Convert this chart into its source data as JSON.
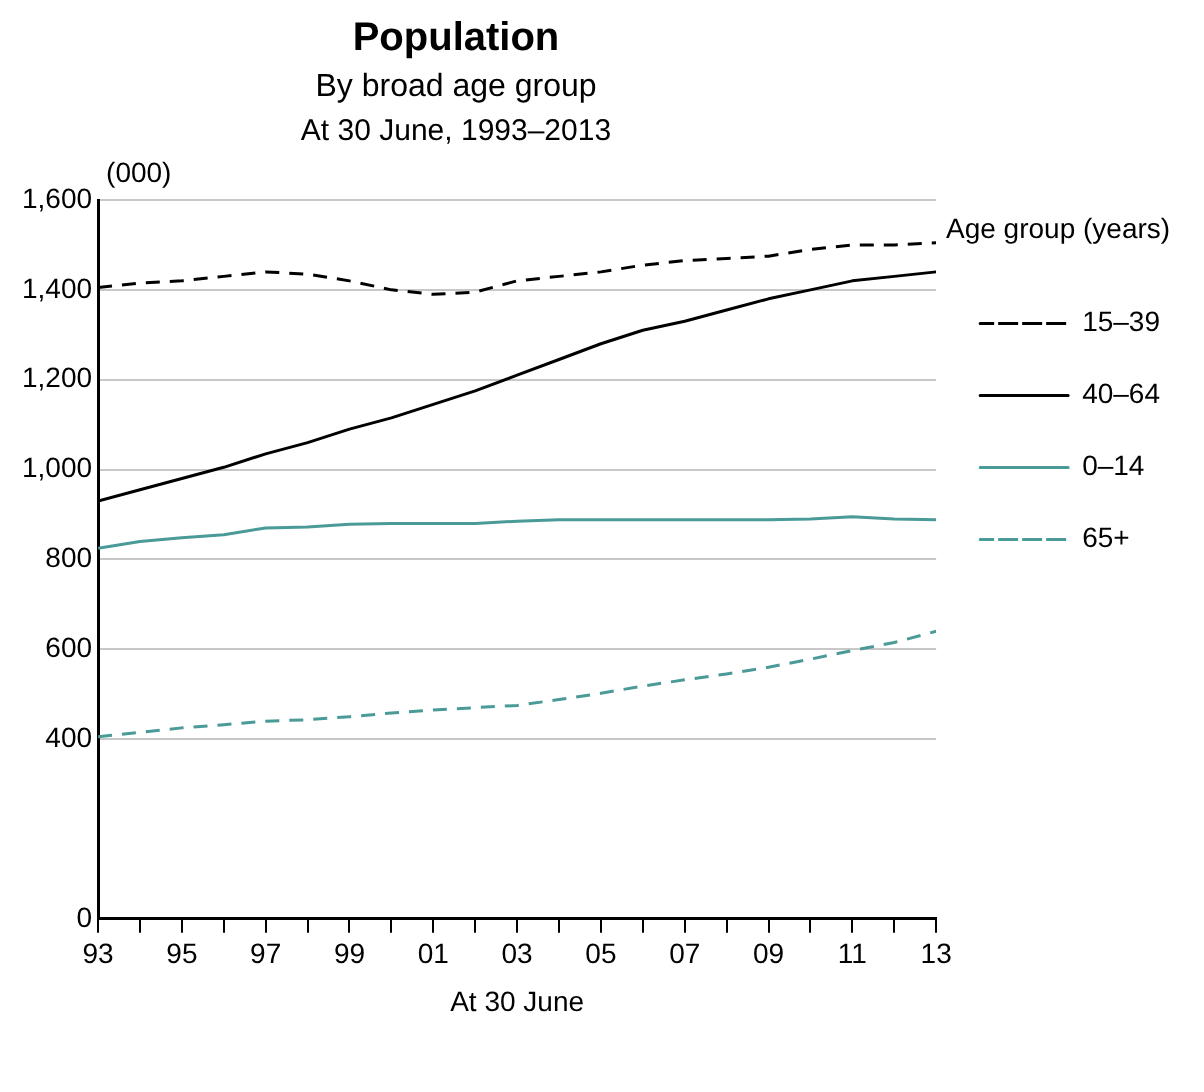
{
  "chart_data": {
    "type": "line",
    "title": "Population",
    "subtitle": "By broad age group",
    "annotations": [
      "At 30 June, 1993–2013"
    ],
    "xlabel": "At 30 June",
    "ylabel": "(000)",
    "legend_title": "Age group (years)",
    "legend": "right",
    "grid": "y",
    "marker": "none",
    "x": [
      1993,
      1994,
      1995,
      1996,
      1997,
      1998,
      1999,
      2000,
      2001,
      2002,
      2003,
      2004,
      2005,
      2006,
      2007,
      2008,
      2009,
      2010,
      2011,
      2012,
      2013
    ],
    "xlim": [
      1993,
      2013
    ],
    "xticks": [
      {
        "value": 1993,
        "label": "93"
      },
      {
        "value": 1994,
        "label": null
      },
      {
        "value": 1995,
        "label": "95"
      },
      {
        "value": 1996,
        "label": null
      },
      {
        "value": 1997,
        "label": "97"
      },
      {
        "value": 1998,
        "label": null
      },
      {
        "value": 1999,
        "label": "99"
      },
      {
        "value": 2000,
        "label": null
      },
      {
        "value": 2001,
        "label": "01"
      },
      {
        "value": 2002,
        "label": null
      },
      {
        "value": 2003,
        "label": "03"
      },
      {
        "value": 2004,
        "label": null
      },
      {
        "value": 2005,
        "label": "05"
      },
      {
        "value": 2006,
        "label": null
      },
      {
        "value": 2007,
        "label": "07"
      },
      {
        "value": 2008,
        "label": null
      },
      {
        "value": 2009,
        "label": "09"
      },
      {
        "value": 2010,
        "label": null
      },
      {
        "value": 2011,
        "label": "11"
      },
      {
        "value": 2012,
        "label": null
      },
      {
        "value": 2013,
        "label": "13"
      }
    ],
    "ylim": [
      0,
      1600
    ],
    "yticks": [
      {
        "value": 0,
        "label": "0"
      },
      {
        "value": 400,
        "label": "400"
      },
      {
        "value": 600,
        "label": "600"
      },
      {
        "value": 800,
        "label": "800"
      },
      {
        "value": 1000,
        "label": "1,000"
      },
      {
        "value": 1200,
        "label": "1,200"
      },
      {
        "value": 1400,
        "label": "1,400"
      },
      {
        "value": 1600,
        "label": "1,600"
      }
    ],
    "series": [
      {
        "name": "15–39",
        "color": "#000000",
        "line_style": "dashed",
        "values": [
          1405,
          1415,
          1420,
          1430,
          1440,
          1435,
          1420,
          1400,
          1390,
          1395,
          1420,
          1430,
          1440,
          1455,
          1465,
          1470,
          1475,
          1490,
          1500,
          1500,
          1505
        ]
      },
      {
        "name": "40–64",
        "color": "#000000",
        "line_style": "solid",
        "values": [
          930,
          955,
          980,
          1005,
          1035,
          1060,
          1090,
          1115,
          1145,
          1175,
          1210,
          1245,
          1280,
          1310,
          1330,
          1355,
          1380,
          1400,
          1420,
          1430,
          1440
        ]
      },
      {
        "name": "0–14",
        "color": "#4a9a98",
        "line_style": "solid",
        "values": [
          825,
          840,
          848,
          855,
          870,
          872,
          878,
          880,
          880,
          880,
          885,
          888,
          888,
          888,
          888,
          888,
          888,
          890,
          895,
          890,
          888
        ]
      },
      {
        "name": "65+",
        "color": "#4a9a98",
        "line_style": "dashed",
        "values": [
          405,
          415,
          425,
          432,
          440,
          443,
          450,
          458,
          465,
          470,
          475,
          488,
          502,
          518,
          532,
          545,
          560,
          578,
          597,
          615,
          640
        ]
      }
    ]
  }
}
